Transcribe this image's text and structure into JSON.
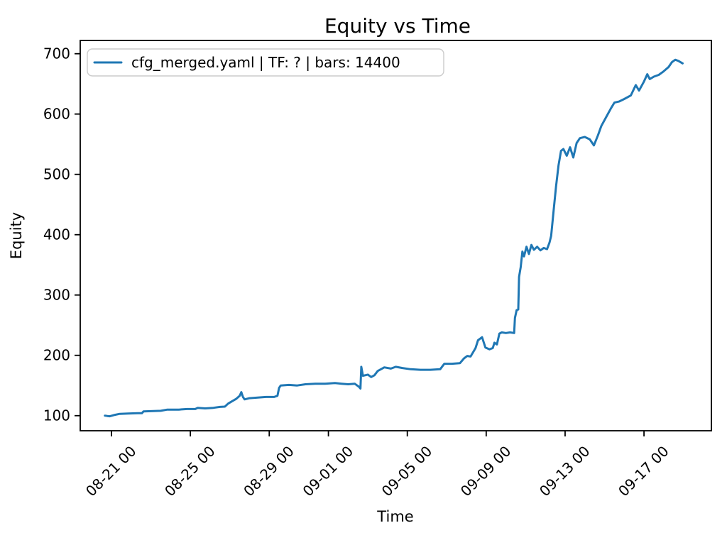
{
  "chart_data": {
    "type": "line",
    "title": "Equity vs Time",
    "xlabel": "Time",
    "ylabel": "Equity",
    "grid": false,
    "legend_position": "upper left",
    "legend_edge_color": "#cccccc",
    "x_tick_labels": [
      "08-21 00",
      "08-25 00",
      "08-29 00",
      "09-01 00",
      "09-05 00",
      "09-09 00",
      "09-13 00",
      "09-17 00"
    ],
    "y_tick_labels": [
      100,
      200,
      300,
      400,
      500,
      600,
      700
    ],
    "xlim": [
      "08-19 10",
      "09-20 10"
    ],
    "ylim": [
      75,
      722
    ],
    "series": [
      {
        "name": "cfg_merged.yaml | TF: ? | bars: 14400",
        "color": "#1f77b4",
        "x": [
          "08-20 16",
          "08-20 19",
          "08-20 22",
          "08-21 03",
          "08-21 10",
          "08-21 20",
          "08-22 08",
          "08-22 13",
          "08-22 15",
          "08-23 00",
          "08-23 12",
          "08-23 20",
          "08-24 10",
          "08-24 20",
          "08-25 06",
          "08-25 09",
          "08-25 18",
          "08-26 04",
          "08-26 12",
          "08-26 18",
          "08-26 22",
          "08-27 03",
          "08-27 08",
          "08-27 12",
          "08-27 14",
          "08-27 16",
          "08-27 18",
          "08-28 00",
          "08-28 10",
          "08-28 20",
          "08-29 06",
          "08-29 10",
          "08-29 12",
          "08-29 14",
          "08-30 00",
          "08-30 10",
          "08-30 20",
          "08-31 08",
          "08-31 20",
          "09-01 08",
          "09-01 16",
          "09-02 00",
          "09-02 08",
          "09-02 13",
          "09-02 15",
          "09-02 16",
          "09-02 18",
          "09-03 00",
          "09-03 04",
          "09-03 08",
          "09-03 12",
          "09-03 20",
          "09-04 04",
          "09-04 10",
          "09-04 18",
          "09-05 04",
          "09-05 16",
          "09-06 04",
          "09-06 16",
          "09-06 21",
          "09-07 06",
          "09-07 16",
          "09-07 21",
          "09-08 01",
          "09-08 05",
          "09-08 08",
          "09-08 11",
          "09-08 14",
          "09-08 19",
          "09-08 23",
          "09-09 04",
          "09-09 08",
          "09-09 10",
          "09-09 13",
          "09-09 16",
          "09-09 19",
          "09-10 00",
          "09-10 05",
          "09-10 10",
          "09-10 11",
          "09-10 13",
          "09-10 15",
          "09-10 16",
          "09-10 18",
          "09-10 20",
          "09-10 22",
          "09-11 01",
          "09-11 04",
          "09-11 07",
          "09-11 10",
          "09-11 14",
          "09-11 18",
          "09-11 22",
          "09-12 02",
          "09-12 05",
          "09-12 07",
          "09-12 10",
          "09-12 13",
          "09-12 16",
          "09-12 19",
          "09-12 22",
          "09-13 02",
          "09-13 06",
          "09-13 10",
          "09-13 14",
          "09-13 18",
          "09-14 00",
          "09-14 06",
          "09-14 11",
          "09-14 16",
          "09-14 20",
          "09-15 02",
          "09-15 08",
          "09-15 12",
          "09-15 18",
          "09-16 00",
          "09-16 08",
          "09-16 14",
          "09-16 18",
          "09-17 00",
          "09-17 04",
          "09-17 07",
          "09-17 12",
          "09-17 18",
          "09-18 00",
          "09-18 06",
          "09-18 10",
          "09-18 14",
          "09-18 18",
          "09-18 23"
        ],
        "y": [
          100,
          99.5,
          99,
          101,
          103,
          103.5,
          104,
          104,
          107,
          107.5,
          108,
          110,
          110,
          111,
          111,
          113,
          112,
          113,
          114.5,
          115,
          120,
          124,
          128,
          133,
          139,
          131,
          127,
          129,
          130,
          131,
          131,
          133,
          146,
          150,
          151,
          150,
          152,
          153,
          153,
          154,
          153,
          152,
          153,
          148,
          145,
          181,
          166,
          168,
          164,
          167,
          174,
          180,
          178,
          181,
          179,
          177,
          176,
          176,
          177,
          186,
          186,
          187,
          195,
          199,
          198,
          205,
          212,
          225,
          230,
          213,
          210,
          212,
          221,
          218,
          236,
          238,
          237,
          238,
          237,
          262,
          275,
          276,
          330,
          346,
          372,
          364,
          380,
          368,
          383,
          375,
          380,
          374,
          378,
          376,
          387,
          398,
          440,
          480,
          515,
          539,
          542,
          531,
          545,
          528,
          552,
          560,
          562,
          558,
          548,
          565,
          580,
          595,
          610,
          619,
          621,
          625,
          631,
          648,
          639,
          654,
          666,
          658,
          662,
          665,
          671,
          678,
          686,
          690,
          688,
          684
        ]
      }
    ]
  }
}
